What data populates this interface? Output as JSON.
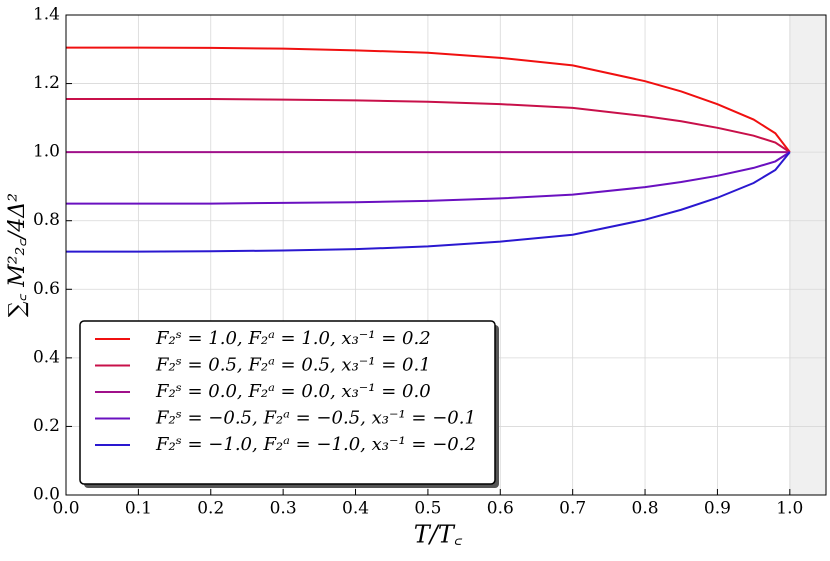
{
  "chart_data": {
    "type": "line",
    "xlabel": "T/T꜀",
    "ylabel": "∑꜀ M²₂꜀/4Δ²",
    "x": [
      0,
      0.1,
      0.2,
      0.3,
      0.4,
      0.5,
      0.6,
      0.7,
      0.8,
      0.85,
      0.9,
      0.95,
      0.98,
      1.0
    ],
    "series": [
      {
        "name": "F₂ˢ = 1.0,  F₂ᵃ = 1.0,  x₃⁻¹ = 0.2",
        "color": "#f01010",
        "values": [
          1.305,
          1.305,
          1.304,
          1.302,
          1.297,
          1.29,
          1.275,
          1.253,
          1.207,
          1.177,
          1.14,
          1.095,
          1.055,
          1.0
        ]
      },
      {
        "name": "F₂ˢ = 0.5,  F₂ᵃ = 0.5,  x₃⁻¹ = 0.1",
        "color": "#c8104a",
        "values": [
          1.155,
          1.155,
          1.155,
          1.153,
          1.151,
          1.147,
          1.14,
          1.129,
          1.105,
          1.09,
          1.071,
          1.048,
          1.028,
          1.0
        ]
      },
      {
        "name": "F₂ˢ = 0.0,  F₂ᵃ = 0.0,  x₃⁻¹ = 0.0",
        "color": "#a0108a",
        "values": [
          1.0,
          1.0,
          1.0,
          1.0,
          1.0,
          1.0,
          1.0,
          1.0,
          1.0,
          1.0,
          1.0,
          1.0,
          1.0,
          1.0
        ]
      },
      {
        "name": "F₂ˢ = −0.5,  F₂ᵃ = −0.5,  x₃⁻¹ = −0.1",
        "color": "#6a10c0",
        "values": [
          0.85,
          0.85,
          0.85,
          0.852,
          0.854,
          0.858,
          0.865,
          0.876,
          0.898,
          0.913,
          0.931,
          0.954,
          0.973,
          1.0
        ]
      },
      {
        "name": "F₂ˢ = −1.0,  F₂ᵃ = −1.0,  x₃⁻¹ = −0.2",
        "color": "#2a18d0",
        "values": [
          0.71,
          0.71,
          0.711,
          0.713,
          0.717,
          0.725,
          0.739,
          0.759,
          0.803,
          0.832,
          0.867,
          0.91,
          0.948,
          1.0
        ]
      }
    ],
    "xlim": [
      0,
      1.05
    ],
    "ylim": [
      0,
      1.4
    ],
    "xticks": [
      {
        "value": 0,
        "label": "0.0"
      },
      0.1,
      0.2,
      0.3,
      0.4,
      0.5,
      0.6,
      0.7,
      0.8,
      0.9,
      {
        "value": 1,
        "label": "1.0"
      }
    ],
    "yticks": [
      {
        "value": 0,
        "label": "0.0"
      },
      0.2,
      0.4,
      0.6,
      0.8,
      {
        "value": 1,
        "label": "1.0"
      },
      1.2,
      1.4
    ],
    "shaded_xrange": [
      1,
      1.05
    ],
    "grid": true,
    "legend": "lower left"
  }
}
